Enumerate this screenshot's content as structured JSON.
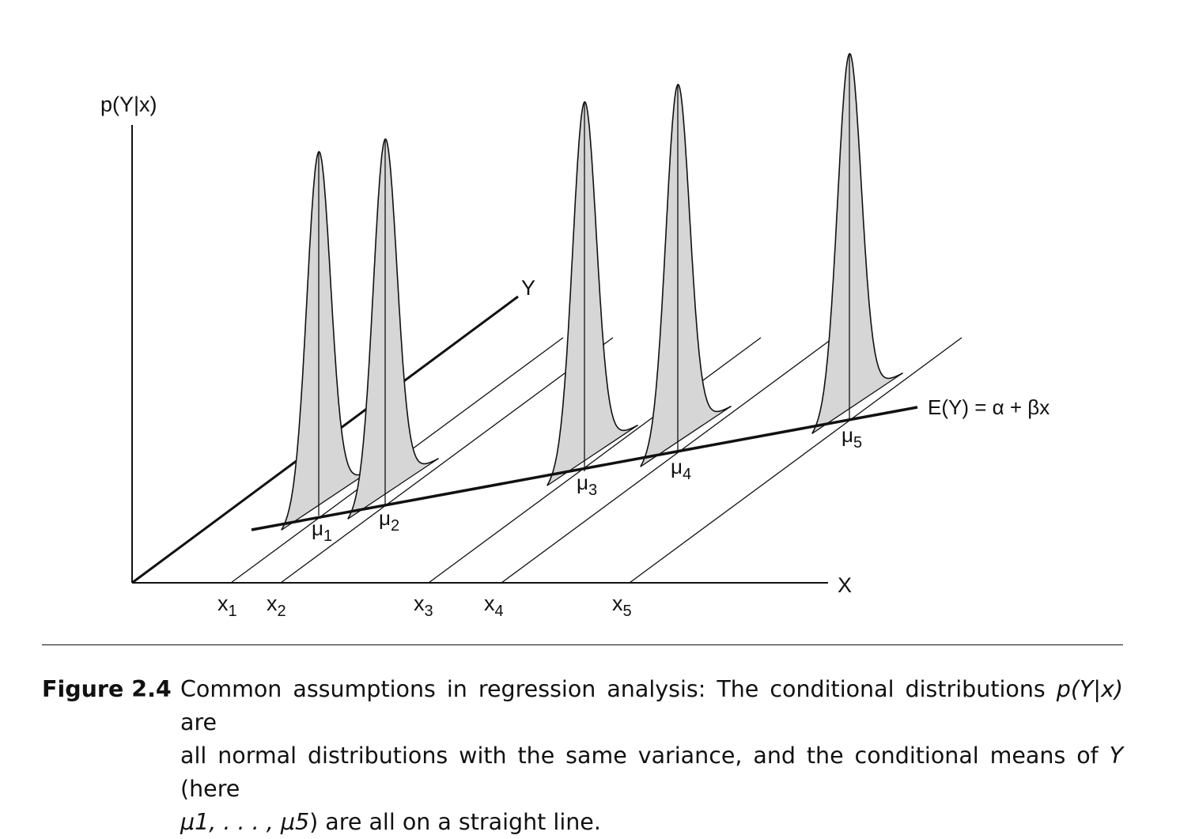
{
  "axes": {
    "vertical_label": "p(Y|x)",
    "x_label": "X",
    "y_label": "Y"
  },
  "x_ticks": [
    {
      "name": "x",
      "sub": "1"
    },
    {
      "name": "x",
      "sub": "2"
    },
    {
      "name": "x",
      "sub": "3"
    },
    {
      "name": "x",
      "sub": "4"
    },
    {
      "name": "x",
      "sub": "5"
    }
  ],
  "means": [
    {
      "name": "μ",
      "sub": "1"
    },
    {
      "name": "μ",
      "sub": "2"
    },
    {
      "name": "μ",
      "sub": "3"
    },
    {
      "name": "μ",
      "sub": "4"
    },
    {
      "name": "μ",
      "sub": "5"
    }
  ],
  "regression_label": "E(Y) = α + βx",
  "caption": {
    "label": "Figure 2.4",
    "line1_a": "Common assumptions in regression analysis: The conditional distributions ",
    "line1_math": "p(Y|x)",
    "line1_b": " are",
    "line2_a": "all normal distributions with the same variance, and the conditional means of ",
    "line2_math": "Y",
    "line2_b": " (here",
    "line3_math": "μ1, . . . , μ5",
    "line3_b": ") are all on a straight line."
  },
  "colors": {
    "ink": "#111111",
    "curve_fill": "#d6d6d6"
  }
}
